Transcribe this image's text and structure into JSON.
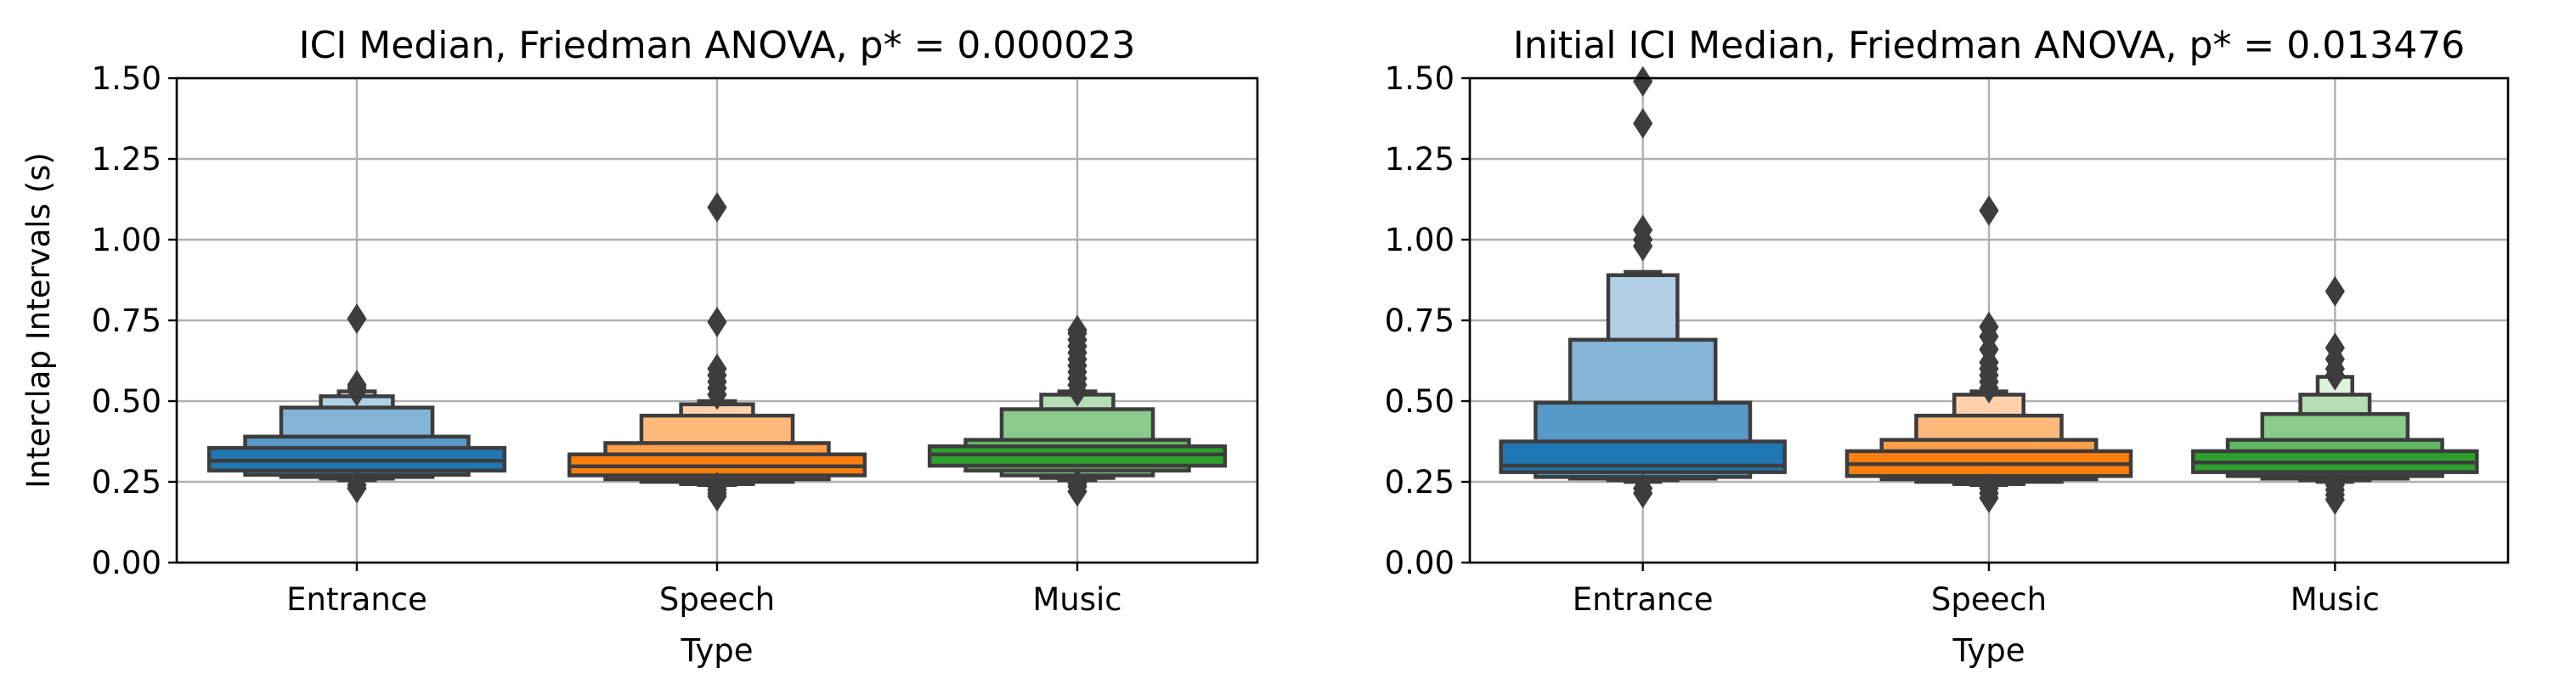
{
  "chart_data": [
    {
      "type": "boxen",
      "title": "ICI Median, Friedman ANOVA, p* = 0.000023",
      "xlabel": "Type",
      "ylabel": "Interclap Intervals (s)",
      "ylim": [
        0,
        1.5
      ],
      "yticks": [
        "0.00",
        "0.25",
        "0.50",
        "0.75",
        "1.00",
        "1.25",
        "1.50"
      ],
      "grid": true,
      "categories": [
        "Entrance",
        "Speech",
        "Music"
      ],
      "colors": [
        "#1f77b4",
        "#ff7f0e",
        "#2ca02c"
      ],
      "median": [
        0.315,
        0.298,
        0.335
      ],
      "boxes": [
        [
          [
            0.285,
            0.355
          ],
          [
            0.272,
            0.39
          ],
          [
            0.265,
            0.48
          ],
          [
            0.26,
            0.515
          ],
          [
            0.255,
            0.53
          ]
        ],
        [
          [
            0.27,
            0.335
          ],
          [
            0.258,
            0.37
          ],
          [
            0.25,
            0.455
          ],
          [
            0.243,
            0.49
          ],
          [
            0.24,
            0.5
          ]
        ],
        [
          [
            0.3,
            0.36
          ],
          [
            0.285,
            0.38
          ],
          [
            0.27,
            0.475
          ],
          [
            0.262,
            0.52
          ],
          [
            0.255,
            0.53
          ]
        ]
      ],
      "outliers": [
        [
          0.755,
          0.55,
          0.54,
          0.53,
          0.23,
          0.24
        ],
        [
          1.1,
          0.745,
          0.6,
          0.58,
          0.56,
          0.54,
          0.52,
          0.205,
          0.215,
          0.225,
          0.235
        ],
        [
          0.72,
          0.71,
          0.69,
          0.67,
          0.65,
          0.63,
          0.61,
          0.59,
          0.57,
          0.55,
          0.53,
          0.22,
          0.235,
          0.245
        ]
      ]
    },
    {
      "type": "boxen",
      "title": "Initial ICI Median, Friedman ANOVA, p* = 0.013476",
      "xlabel": "Type",
      "ylabel": "",
      "ylim": [
        0,
        1.5
      ],
      "yticks": [
        "0.00",
        "0.25",
        "0.50",
        "0.75",
        "1.00",
        "1.25",
        "1.50"
      ],
      "grid": true,
      "categories": [
        "Entrance",
        "Speech",
        "Music"
      ],
      "colors": [
        "#1f77b4",
        "#ff7f0e",
        "#2ca02c"
      ],
      "median": [
        0.3,
        0.305,
        0.31
      ],
      "boxes": [
        [
          [
            0.28,
            0.375
          ],
          [
            0.265,
            0.495
          ],
          [
            0.26,
            0.69
          ],
          [
            0.255,
            0.89
          ],
          [
            0.25,
            0.9
          ]
        ],
        [
          [
            0.268,
            0.345
          ],
          [
            0.258,
            0.38
          ],
          [
            0.25,
            0.455
          ],
          [
            0.243,
            0.52
          ],
          [
            0.24,
            0.53
          ]
        ],
        [
          [
            0.28,
            0.345
          ],
          [
            0.268,
            0.38
          ],
          [
            0.26,
            0.46
          ],
          [
            0.255,
            0.52
          ],
          [
            0.25,
            0.575
          ]
        ]
      ],
      "outliers": [
        [
          1.49,
          1.36,
          1.03,
          1.0,
          0.98,
          0.215,
          0.23
        ],
        [
          1.09,
          0.73,
          0.7,
          0.66,
          0.62,
          0.6,
          0.58,
          0.56,
          0.54,
          0.2,
          0.215,
          0.23
        ],
        [
          0.84,
          0.665,
          0.63,
          0.6,
          0.58,
          0.195,
          0.21,
          0.225,
          0.24
        ]
      ]
    }
  ]
}
